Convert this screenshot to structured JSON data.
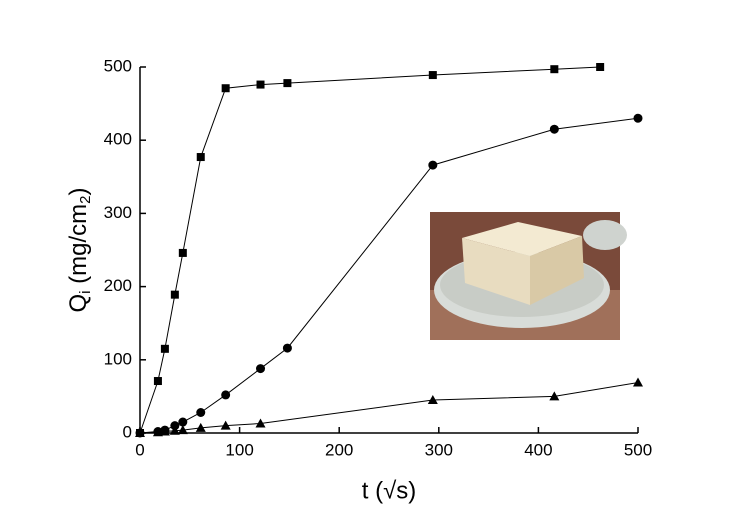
{
  "chart_data": {
    "type": "line",
    "x_label": "t (√s)",
    "y_label": [
      "Q",
      "i",
      " (mg/cm",
      "2",
      ")"
    ],
    "xlim": [
      0,
      500
    ],
    "xticks": [
      0,
      100,
      200,
      300,
      400,
      500
    ],
    "ylim": [
      0,
      500
    ],
    "yticks": [
      0,
      100,
      200,
      300,
      400,
      500
    ],
    "series": [
      {
        "marker": "square",
        "color": "#000000",
        "x": [
          0,
          18,
          25,
          35,
          43,
          61,
          86,
          121,
          148,
          294,
          416,
          462
        ],
        "values": [
          0,
          71,
          115,
          189,
          246,
          377,
          471,
          476,
          478,
          489,
          497,
          500
        ]
      },
      {
        "marker": "circle",
        "color": "#000000",
        "x": [
          0,
          18,
          25,
          35,
          43,
          61,
          86,
          121,
          148,
          294,
          416,
          500
        ],
        "values": [
          0,
          2,
          4,
          10,
          15,
          28,
          52,
          88,
          116,
          366,
          415,
          430
        ]
      },
      {
        "marker": "triangle",
        "color": "#000000",
        "x": [
          0,
          18,
          25,
          35,
          43,
          61,
          86,
          121,
          294,
          416,
          500
        ],
        "values": [
          0,
          1,
          2,
          3,
          4,
          7,
          10,
          13,
          45,
          50,
          69
        ]
      }
    ]
  }
}
